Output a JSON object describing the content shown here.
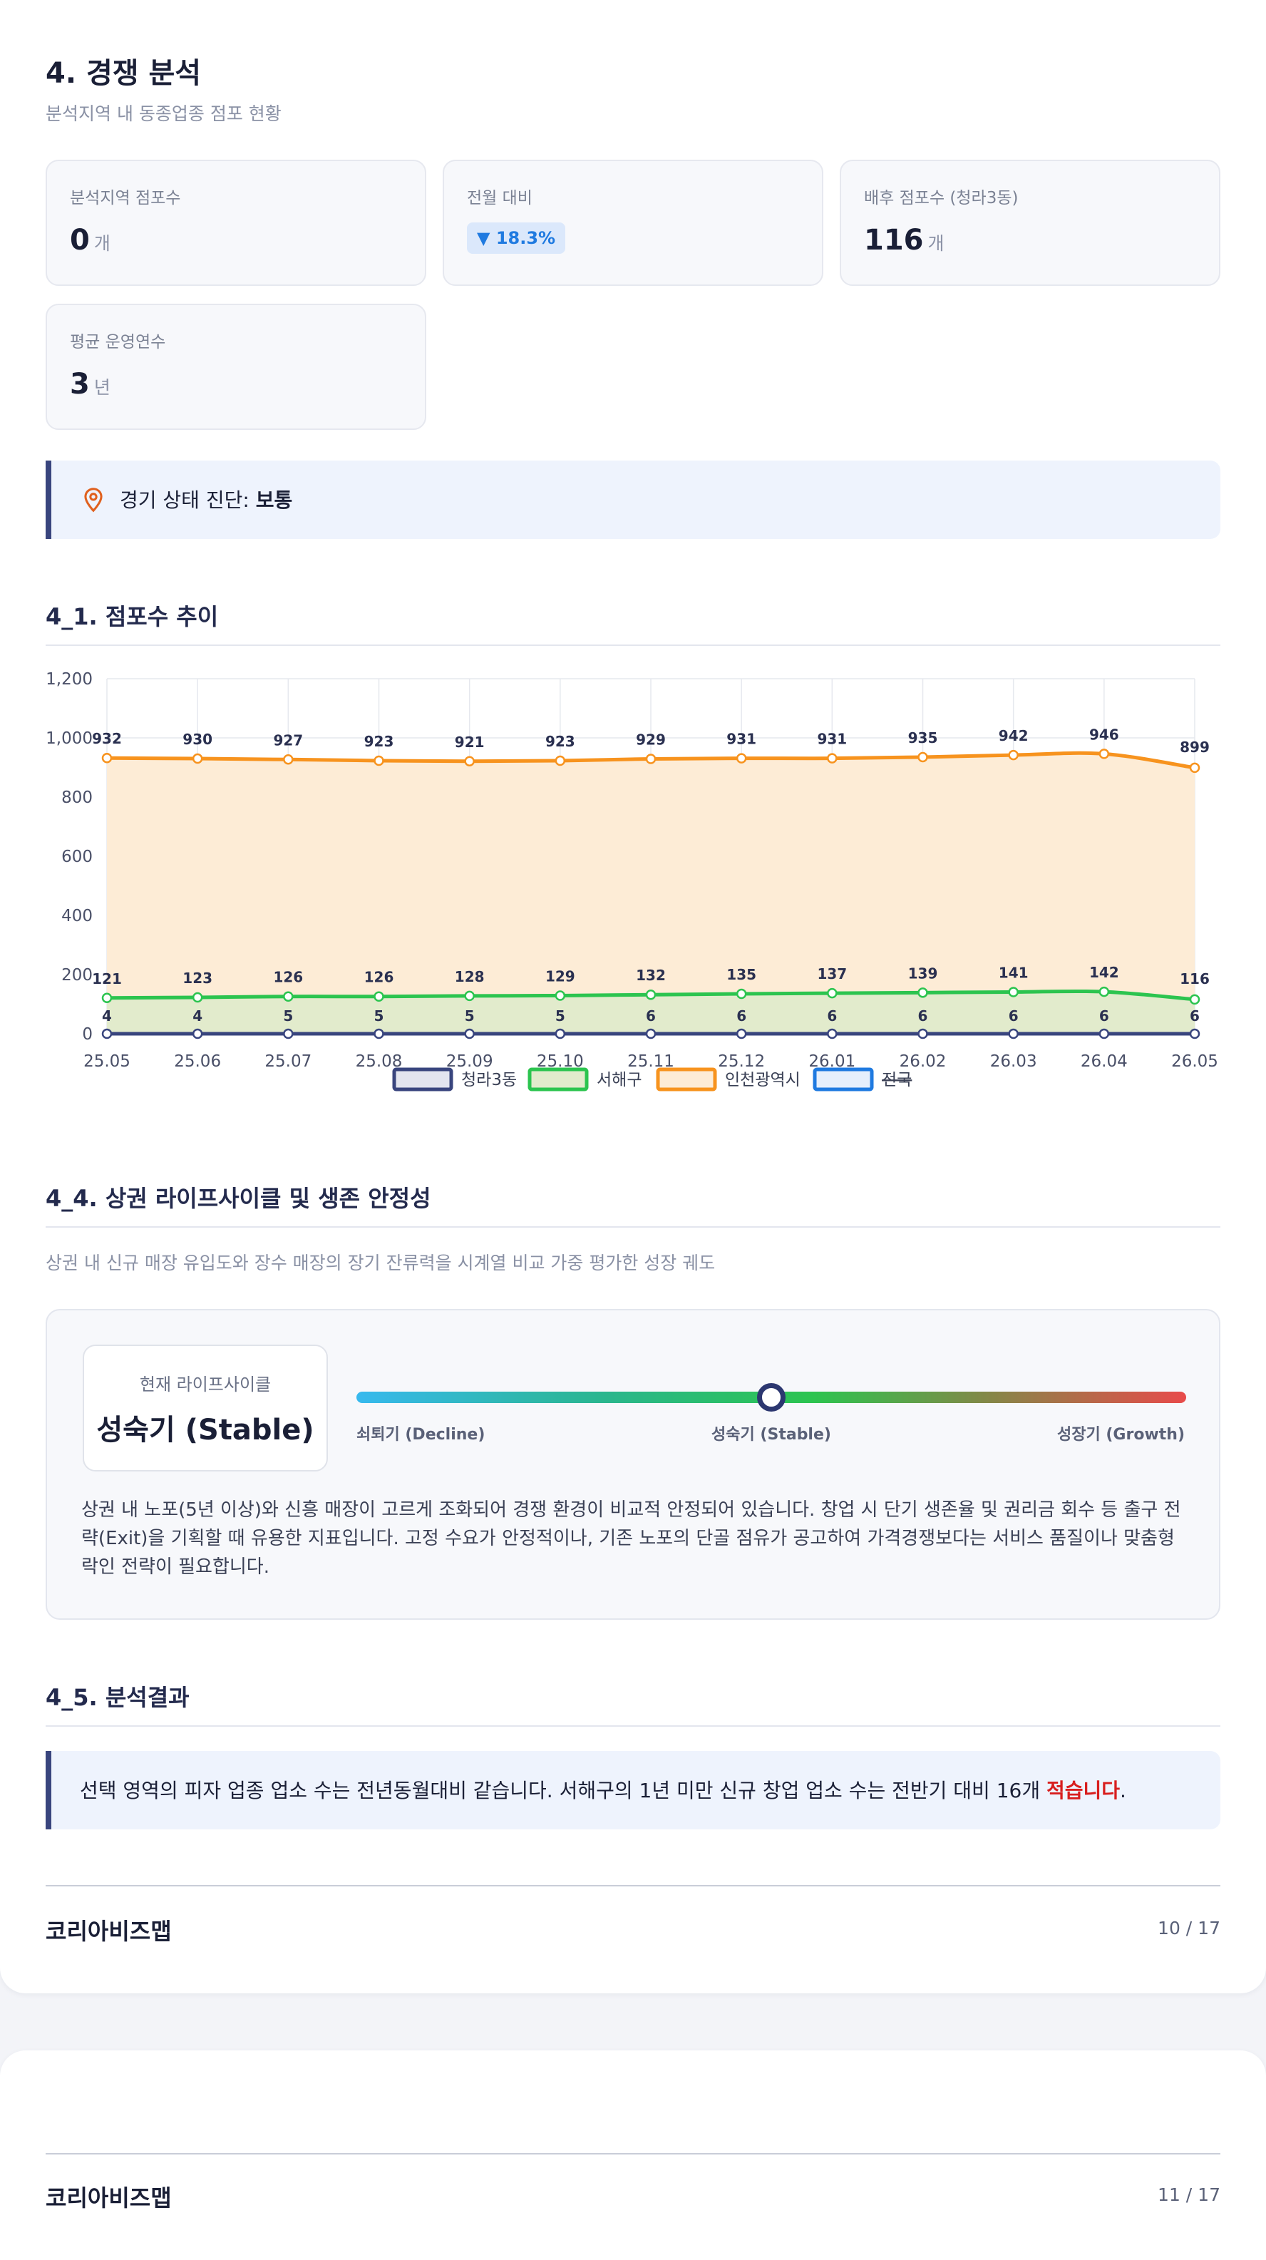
{
  "section": {
    "title": "4. 경쟁 분석",
    "subtitle": "분석지역 내 동종업종 점포 현황"
  },
  "cards": {
    "store_count": {
      "label": "분석지역 점포수",
      "value": "0",
      "unit": "개"
    },
    "mom": {
      "label": "전월 대비",
      "value": "▼ 18.3%"
    },
    "background_stores": {
      "label": "배후 점포수 (청라3동)",
      "value": "116",
      "unit": "개"
    },
    "avg_years": {
      "label": "평균 운영연수",
      "value": "3",
      "unit": "년"
    }
  },
  "diagnosis": {
    "prefix": "경기 상태 진단: ",
    "value": "보통"
  },
  "chart_section": {
    "title": "4_1. 점포수 추이"
  },
  "chart_data": {
    "type": "area",
    "x": [
      "25.05",
      "25.06",
      "25.07",
      "25.08",
      "25.09",
      "25.10",
      "25.11",
      "25.12",
      "26.01",
      "26.02",
      "26.03",
      "26.04",
      "26.05"
    ],
    "ylim": [
      0,
      1200
    ],
    "yticks": [
      "0",
      "200",
      "400",
      "600",
      "800",
      "1,000",
      "1,200"
    ],
    "series": [
      {
        "name": "청라3동",
        "values": [
          0,
          0,
          0,
          0,
          0,
          0,
          0,
          0,
          0,
          0,
          0,
          0,
          0
        ],
        "color": "#39457e",
        "fill": "#e3e5ef",
        "labels": false
      },
      {
        "name": "서해구",
        "values": [
          121,
          123,
          126,
          126,
          128,
          129,
          132,
          135,
          137,
          139,
          141,
          142,
          116
        ],
        "color": "#2cc44f",
        "fill": "#e2ebcc",
        "labels": true
      },
      {
        "name": "인천광역시",
        "values": [
          932,
          930,
          927,
          923,
          921,
          923,
          929,
          931,
          931,
          935,
          942,
          946,
          899
        ],
        "color": "#f7931e",
        "fill": "#fdecd6",
        "labels": true
      },
      {
        "name": "전국",
        "hidden": true,
        "color": "#1f7ae0",
        "fill": "#e6effc"
      }
    ],
    "extra_labels": {
      "row": [
        4,
        4,
        5,
        5,
        5,
        5,
        6,
        6,
        6,
        6,
        6,
        6,
        6
      ]
    },
    "grid": true,
    "legend": "bottom"
  },
  "lifecycle_section": {
    "title": "4_4. 상권 라이프사이클 및 생존 안정성",
    "subtitle": "상권 내 신규 매장 유입도와 장수 매장의 장기 잔류력을 시계열 비교 가중 평가한 성장 궤도",
    "current_label": "현재 라이프사이클",
    "current_value": "성숙기 (Stable)",
    "stages": [
      "쇠퇴기 (Decline)",
      "성숙기 (Stable)",
      "성장기 (Growth)"
    ],
    "position": 0.5,
    "description": "상권 내 노포(5년 이상)와 신흥 매장이 고르게 조화되어 경쟁 환경이 비교적 안정되어 있습니다. 창업 시 단기 생존율 및 권리금 회수 등 출구 전략(Exit)을 기획할 때 유용한 지표입니다. 고정 수요가 안정적이나, 기존 노포의 단골 점유가 공고하여 가격경쟁보다는 서비스 품질이나 맞춤형 락인 전략이 필요합니다."
  },
  "result_section": {
    "title": "4_5. 분석결과",
    "text": "선택 영역의 피자 업종 업소 수는 전년동월대비 같습니다. 서해구의 1년 미만 신규 창업 업소 수는 전반기 대비 16개 ",
    "highlight": "적습니다",
    "end": "."
  },
  "footer": {
    "brand": "코리아비즈맵",
    "page1": "10 / 17",
    "page2": "11 / 17"
  },
  "colors": {
    "accent": "#39457e",
    "down": "#1f7ae0",
    "highlight": "#d81e1e",
    "pin": "#e0601e"
  },
  "icons": {
    "diagnosis": "map-pin-icon"
  }
}
